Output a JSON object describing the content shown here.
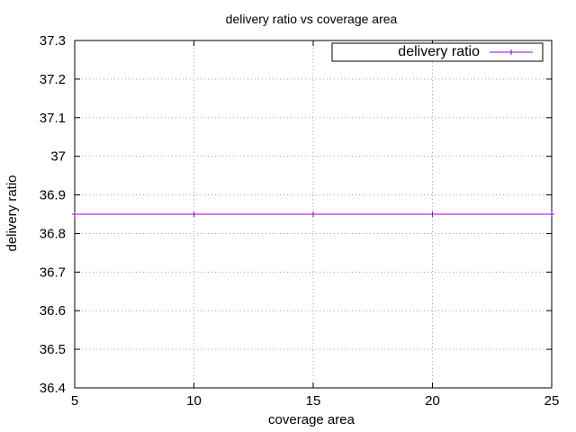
{
  "chart_data": {
    "type": "line",
    "title": "delivery ratio vs coverage area",
    "xlabel": "coverage area",
    "ylabel": "delivery ratio",
    "xlim": [
      5,
      25
    ],
    "ylim": [
      36.4,
      37.3
    ],
    "xticks": [
      "5",
      "10",
      "15",
      "20",
      "25"
    ],
    "yticks": [
      "36.4",
      "36.5",
      "36.6",
      "36.7",
      "36.8",
      "36.9",
      "37",
      "37.1",
      "37.2",
      "37.3"
    ],
    "grid": true,
    "legend_position": "top-right",
    "series": [
      {
        "name": "delivery ratio",
        "color": "#9400d3",
        "marker": "plus",
        "points": [
          {
            "x": 5,
            "y": 36.85
          },
          {
            "x": 10,
            "y": 36.85
          },
          {
            "x": 15,
            "y": 36.85
          },
          {
            "x": 20,
            "y": 36.85
          },
          {
            "x": 25,
            "y": 36.85
          }
        ]
      }
    ]
  }
}
